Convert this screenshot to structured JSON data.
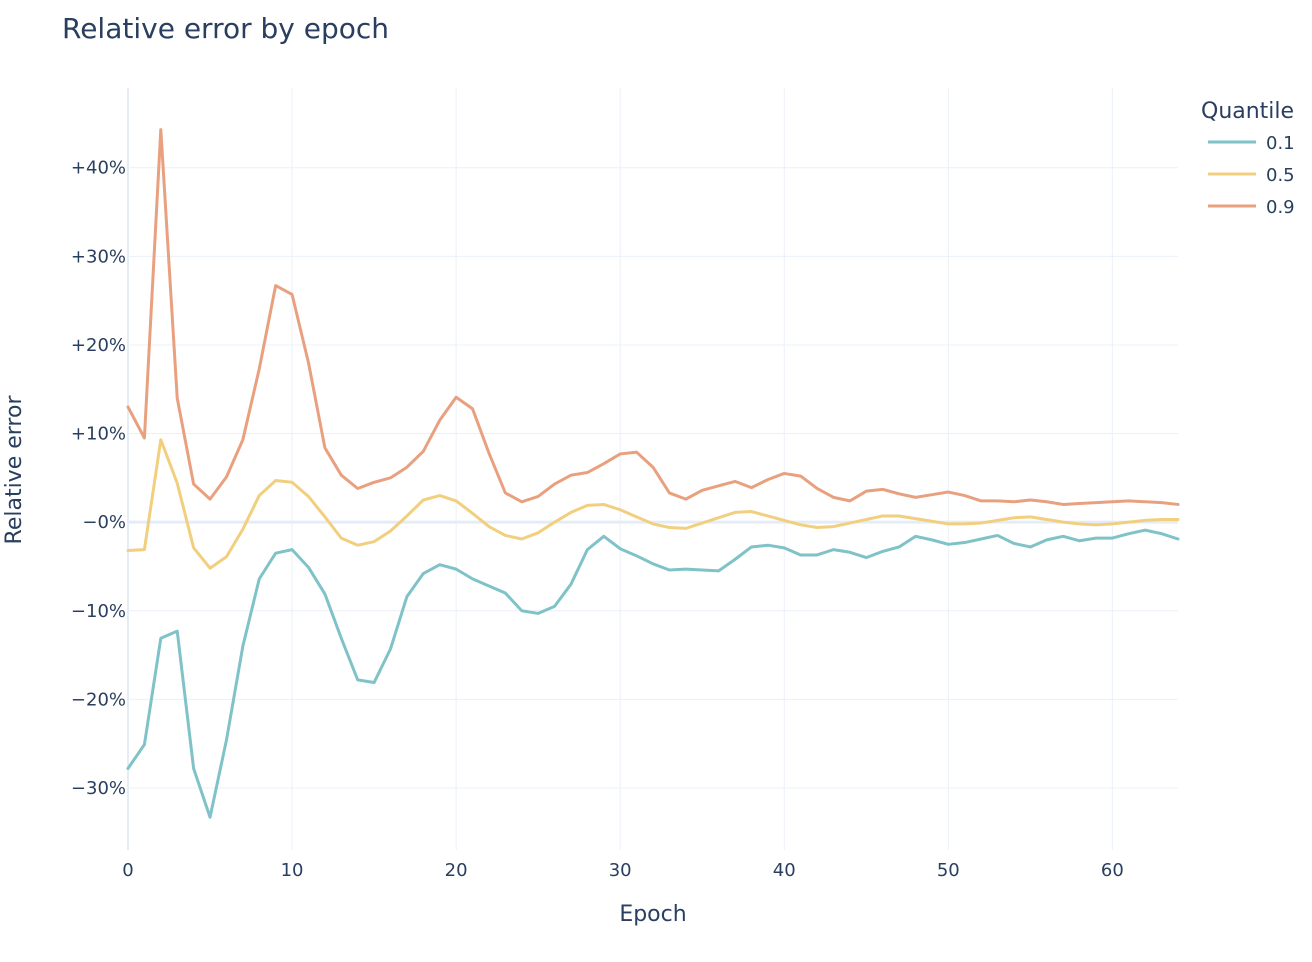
{
  "chart_data": {
    "type": "line",
    "title": "Relative error by epoch",
    "xlabel": "Epoch",
    "ylabel": "Relative error",
    "xlim": [
      0,
      64
    ],
    "ylim": [
      -37,
      49
    ],
    "x_ticks": [
      0,
      10,
      20,
      30,
      40,
      50,
      60
    ],
    "y_ticks": [
      -30,
      -20,
      -10,
      0,
      10,
      20,
      30,
      40
    ],
    "y_tick_labels": [
      "−30%",
      "−20%",
      "−10%",
      "−0%",
      "+10%",
      "+20%",
      "+30%",
      "+40%"
    ],
    "grid": true,
    "legend": {
      "title": "Quantile",
      "placement": "top-right"
    },
    "x": [
      0,
      1,
      2,
      3,
      4,
      5,
      6,
      7,
      8,
      9,
      10,
      11,
      12,
      13,
      14,
      15,
      16,
      17,
      18,
      19,
      20,
      21,
      22,
      23,
      24,
      25,
      26,
      27,
      28,
      29,
      30,
      31,
      32,
      33,
      34,
      35,
      36,
      37,
      38,
      39,
      40,
      41,
      42,
      43,
      44,
      45,
      46,
      47,
      48,
      49,
      50,
      51,
      52,
      53,
      54,
      55,
      56,
      57,
      58,
      59,
      60,
      61,
      62,
      63,
      64
    ],
    "series": [
      {
        "name": "0.1",
        "color": "#7fc2c7",
        "values": [
          -27.8,
          -25.1,
          -13.1,
          -12.3,
          -27.8,
          -33.3,
          -24.6,
          -14.0,
          -6.4,
          -3.5,
          -3.1,
          -5.1,
          -8.1,
          -13.1,
          -17.8,
          -18.1,
          -14.3,
          -8.4,
          -5.8,
          -4.8,
          -5.3,
          -6.4,
          -7.2,
          -8.0,
          -10.0,
          -10.3,
          -9.5,
          -7.0,
          -3.1,
          -1.6,
          -3.0,
          -3.8,
          -4.7,
          -5.4,
          -5.3,
          -5.4,
          -5.5,
          -4.2,
          -2.8,
          -2.6,
          -2.9,
          -3.7,
          -3.7,
          -3.1,
          -3.4,
          -4.0,
          -3.3,
          -2.8,
          -1.6,
          -2.0,
          -2.5,
          -2.3,
          -1.9,
          -1.5,
          -2.4,
          -2.8,
          -2.0,
          -1.6,
          -2.1,
          -1.8,
          -1.8,
          -1.3,
          -0.9,
          -1.3,
          -1.9
        ]
      },
      {
        "name": "0.5",
        "color": "#f1cf7e",
        "values": [
          -3.2,
          -3.1,
          9.3,
          4.4,
          -2.9,
          -5.2,
          -3.9,
          -0.8,
          3.0,
          4.7,
          4.5,
          2.9,
          0.6,
          -1.8,
          -2.6,
          -2.2,
          -1.0,
          0.7,
          2.5,
          3.0,
          2.4,
          1.0,
          -0.5,
          -1.5,
          -1.9,
          -1.2,
          0.0,
          1.1,
          1.9,
          2.0,
          1.4,
          0.6,
          -0.2,
          -0.6,
          -0.7,
          -0.1,
          0.5,
          1.1,
          1.2,
          0.7,
          0.2,
          -0.3,
          -0.6,
          -0.5,
          -0.1,
          0.3,
          0.7,
          0.7,
          0.4,
          0.1,
          -0.2,
          -0.2,
          -0.1,
          0.2,
          0.5,
          0.6,
          0.3,
          0.0,
          -0.2,
          -0.3,
          -0.2,
          0.0,
          0.2,
          0.3,
          0.3
        ]
      },
      {
        "name": "0.9",
        "color": "#e9a07f",
        "values": [
          13.0,
          9.5,
          44.3,
          14.0,
          4.3,
          2.6,
          5.1,
          9.3,
          17.3,
          26.7,
          25.7,
          18.0,
          8.4,
          5.3,
          3.8,
          4.5,
          5.0,
          6.2,
          8.0,
          11.5,
          14.1,
          12.8,
          7.8,
          3.3,
          2.3,
          2.9,
          4.3,
          5.3,
          5.6,
          6.6,
          7.7,
          7.9,
          6.2,
          3.3,
          2.6,
          3.6,
          4.1,
          4.6,
          3.9,
          4.8,
          5.5,
          5.2,
          3.8,
          2.8,
          2.4,
          3.5,
          3.7,
          3.2,
          2.8,
          3.1,
          3.4,
          3.0,
          2.4,
          2.4,
          2.3,
          2.5,
          2.3,
          2.0,
          2.1,
          2.2,
          2.3,
          2.4,
          2.3,
          2.2,
          2.0
        ]
      }
    ]
  }
}
